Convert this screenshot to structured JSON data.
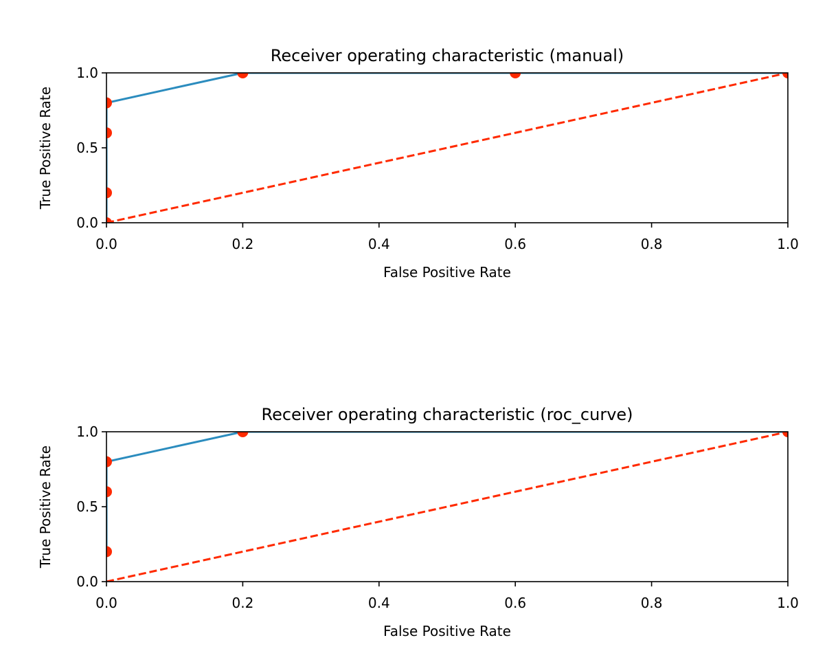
{
  "chart_data": [
    {
      "type": "line",
      "title": "Receiver operating characteristic (manual)",
      "xlabel": "False Positive Rate",
      "ylabel": "True Positive Rate",
      "xlim": [
        0.0,
        1.0
      ],
      "ylim": [
        0.0,
        1.0
      ],
      "x_ticks": [
        "0.0",
        "0.2",
        "0.4",
        "0.6",
        "0.8",
        "1.0"
      ],
      "y_ticks": [
        "0.0",
        "0.5",
        "1.0"
      ],
      "grid": false,
      "colors": {
        "curve": "#2b8cbe",
        "markers": "#ff2a00",
        "diagonal": "#ff2a00"
      },
      "series": [
        {
          "style": "solid-line",
          "color": "#2b8cbe",
          "x": [
            0.0,
            0.0,
            0.0,
            0.0,
            0.2,
            0.6,
            1.0
          ],
          "y": [
            0.0,
            0.2,
            0.6,
            0.8,
            1.0,
            1.0,
            1.0
          ]
        },
        {
          "style": "markers",
          "color": "#ff2a00",
          "x": [
            0.0,
            0.0,
            0.0,
            0.0,
            0.2,
            0.6,
            1.0
          ],
          "y": [
            0.0,
            0.2,
            0.6,
            0.8,
            1.0,
            1.0,
            1.0
          ]
        },
        {
          "style": "dashed-line",
          "color": "#ff2a00",
          "x": [
            0.0,
            1.0
          ],
          "y": [
            0.0,
            1.0
          ]
        }
      ]
    },
    {
      "type": "line",
      "title": "Receiver operating characteristic (roc_curve)",
      "xlabel": "False Positive Rate",
      "ylabel": "True Positive Rate",
      "xlim": [
        0.0,
        1.0
      ],
      "ylim": [
        0.0,
        1.0
      ],
      "x_ticks": [
        "0.0",
        "0.2",
        "0.4",
        "0.6",
        "0.8",
        "1.0"
      ],
      "y_ticks": [
        "0.0",
        "0.5",
        "1.0"
      ],
      "grid": false,
      "colors": {
        "curve": "#2b8cbe",
        "markers": "#ff2a00",
        "diagonal": "#ff2a00"
      },
      "series": [
        {
          "style": "solid-line",
          "color": "#2b8cbe",
          "x": [
            0.0,
            0.0,
            0.0,
            0.2,
            1.0
          ],
          "y": [
            0.2,
            0.6,
            0.8,
            1.0,
            1.0
          ]
        },
        {
          "style": "markers",
          "color": "#ff2a00",
          "x": [
            0.0,
            0.0,
            0.0,
            0.2,
            1.0
          ],
          "y": [
            0.2,
            0.6,
            0.8,
            1.0,
            1.0
          ]
        },
        {
          "style": "dashed-line",
          "color": "#ff2a00",
          "x": [
            0.0,
            1.0
          ],
          "y": [
            0.0,
            1.0
          ]
        }
      ]
    }
  ]
}
